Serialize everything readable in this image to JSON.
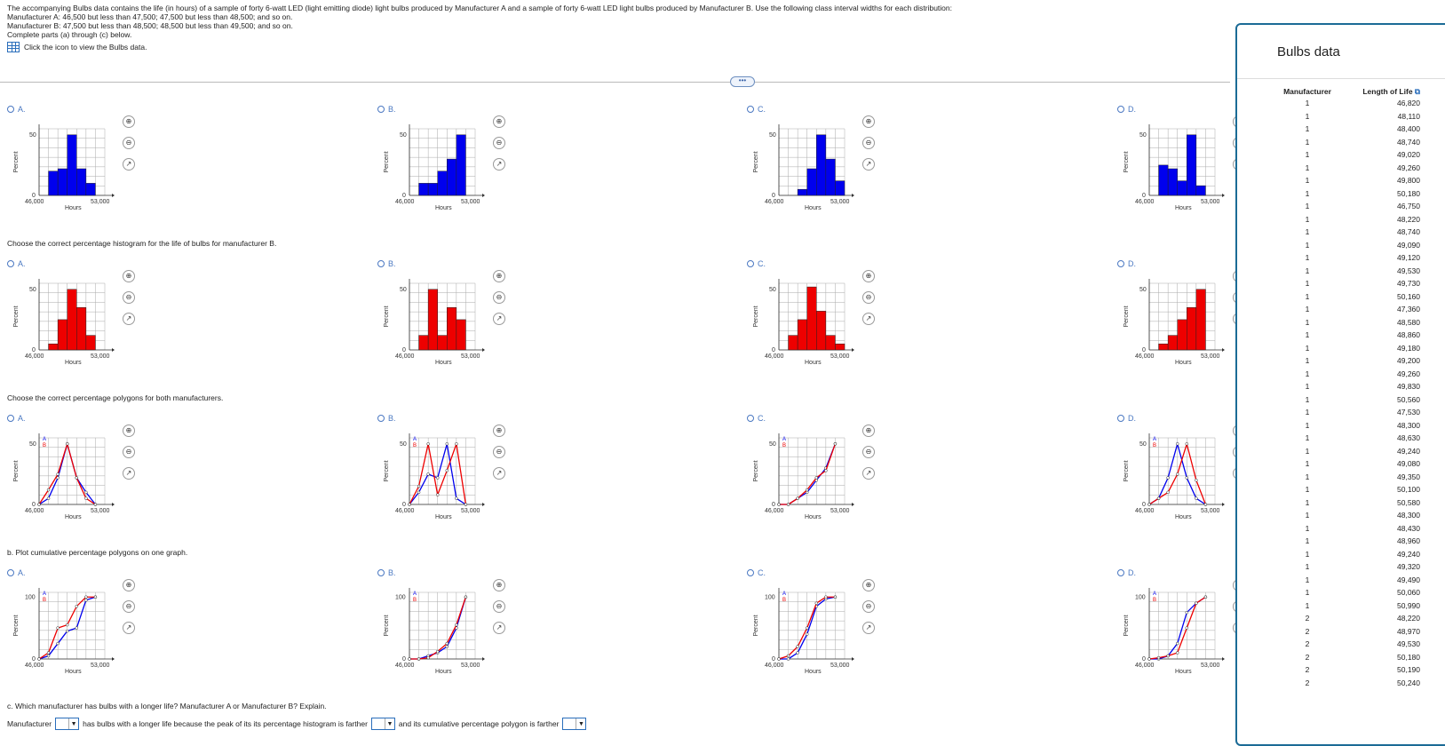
{
  "intro": {
    "line1": "The accompanying Bulbs data contains the life (in hours) of a sample of forty 6-watt LED (light emitting diode) light bulbs produced by Manufacturer A and a sample of forty 6-watt LED light bulbs produced by Manufacturer B. Use the following class interval widths for each distribution:",
    "line2": "Manufacturer A: 46,500 but less than 47,500; 47,500 but less than 48,500; and so on.",
    "line3": "Manufacturer B: 47,500 but less than 48,500; 48,500 but less than 49,500; and so on.",
    "line4": "Complete parts (a) through (c) below.",
    "link": "Click the icon to view the Bulbs data."
  },
  "more_button": "•••",
  "questions": {
    "q2": "Choose the correct percentage histogram for the life of bulbs for manufacturer B.",
    "q3": "Choose the correct percentage polygons for both manufacturers.",
    "q4": "b. Plot cumulative percentage polygons on one graph.",
    "q5": "c. Which manufacturer has bulbs with a longer life? Manufacturer A or Manufacturer B? Explain."
  },
  "option_letters": [
    "A.",
    "B.",
    "C.",
    "D."
  ],
  "axis": {
    "ylabel": "Percent",
    "xlabel": "Hours",
    "xmin_label": "46,000",
    "xmax_label": "53,000",
    "y50": "50",
    "y100": "100",
    "y0": "0",
    "legend_a": "A",
    "legend_b": "B"
  },
  "colors": {
    "a": "#0000ee",
    "b": "#ee0000"
  },
  "chart_data": [
    {
      "type": "bar",
      "row": 1,
      "series": [
        {
          "name": "A",
          "values": [
            0,
            20,
            22,
            50,
            22,
            10,
            0
          ]
        }
      ]
    },
    {
      "type": "bar",
      "row": 1,
      "series": [
        {
          "name": "A",
          "values": [
            0,
            10,
            10,
            20,
            30,
            50,
            0
          ]
        }
      ]
    },
    {
      "type": "bar",
      "row": 1,
      "series": [
        {
          "name": "A",
          "values": [
            0,
            0,
            5,
            22,
            50,
            30,
            12
          ]
        }
      ]
    },
    {
      "type": "bar",
      "row": 1,
      "series": [
        {
          "name": "A",
          "values": [
            0,
            25,
            22,
            12,
            50,
            8,
            0
          ]
        }
      ]
    },
    {
      "type": "bar",
      "row": 2,
      "series": [
        {
          "name": "B",
          "values": [
            0,
            5,
            25,
            50,
            35,
            12,
            0
          ]
        }
      ]
    },
    {
      "type": "bar",
      "row": 2,
      "series": [
        {
          "name": "B",
          "values": [
            0,
            12,
            50,
            12,
            35,
            25,
            0
          ]
        }
      ]
    },
    {
      "type": "bar",
      "row": 2,
      "series": [
        {
          "name": "B",
          "values": [
            0,
            12,
            25,
            52,
            32,
            12,
            5
          ]
        }
      ]
    },
    {
      "type": "bar",
      "row": 2,
      "series": [
        {
          "name": "B",
          "values": [
            0,
            5,
            12,
            25,
            35,
            50,
            0
          ]
        }
      ]
    },
    {
      "type": "line",
      "row": 3,
      "series": [
        {
          "name": "A",
          "values": [
            0,
            5,
            22,
            50,
            22,
            10,
            0
          ]
        },
        {
          "name": "B",
          "values": [
            0,
            12,
            25,
            50,
            22,
            5,
            0
          ]
        }
      ]
    },
    {
      "type": "line",
      "row": 3,
      "series": [
        {
          "name": "A",
          "values": [
            0,
            10,
            25,
            22,
            50,
            5,
            0
          ]
        },
        {
          "name": "B",
          "values": [
            0,
            15,
            50,
            8,
            28,
            50,
            0
          ]
        }
      ]
    },
    {
      "type": "line",
      "row": 3,
      "series": [
        {
          "name": "A",
          "values": [
            0,
            0,
            5,
            10,
            20,
            30,
            50
          ]
        },
        {
          "name": "B",
          "values": [
            0,
            0,
            5,
            12,
            22,
            28,
            50
          ]
        }
      ]
    },
    {
      "type": "line",
      "row": 3,
      "series": [
        {
          "name": "A",
          "values": [
            0,
            5,
            22,
            50,
            22,
            5,
            0
          ]
        },
        {
          "name": "B",
          "values": [
            0,
            5,
            10,
            25,
            50,
            20,
            0
          ]
        }
      ]
    },
    {
      "type": "line",
      "row": 4,
      "series": [
        {
          "name": "A",
          "values": [
            0,
            5,
            25,
            45,
            50,
            95,
            100
          ]
        },
        {
          "name": "B",
          "values": [
            0,
            10,
            50,
            55,
            85,
            100,
            100
          ]
        }
      ]
    },
    {
      "type": "line",
      "row": 4,
      "series": [
        {
          "name": "A",
          "values": [
            0,
            0,
            5,
            10,
            20,
            50,
            100
          ]
        },
        {
          "name": "B",
          "values": [
            0,
            0,
            2,
            12,
            25,
            55,
            100
          ]
        }
      ]
    },
    {
      "type": "line",
      "row": 4,
      "series": [
        {
          "name": "A",
          "values": [
            0,
            0,
            10,
            40,
            85,
            97,
            100
          ]
        },
        {
          "name": "B",
          "values": [
            0,
            5,
            20,
            50,
            90,
            100,
            100
          ]
        }
      ]
    },
    {
      "type": "line",
      "row": 4,
      "series": [
        {
          "name": "A",
          "values": [
            0,
            0,
            5,
            25,
            75,
            90,
            100
          ]
        },
        {
          "name": "B",
          "values": [
            0,
            2,
            5,
            10,
            50,
            90,
            100
          ]
        }
      ]
    }
  ],
  "answer": {
    "part1": "Manufacturer",
    "part2": "has bulbs with a longer life because the peak of its its percentage histogram is farther",
    "part3": "and its cumulative percentage polygon is farther"
  },
  "panel": {
    "title": "Bulbs data",
    "col1": "Manufacturer",
    "col2": "Length of Life",
    "rows": [
      [
        "1",
        "46,820"
      ],
      [
        "1",
        "48,110"
      ],
      [
        "1",
        "48,400"
      ],
      [
        "1",
        "48,740"
      ],
      [
        "1",
        "49,020"
      ],
      [
        "1",
        "49,260"
      ],
      [
        "1",
        "49,800"
      ],
      [
        "1",
        "50,180"
      ],
      [
        "1",
        "46,750"
      ],
      [
        "1",
        "48,220"
      ],
      [
        "1",
        "48,740"
      ],
      [
        "1",
        "49,090"
      ],
      [
        "1",
        "49,120"
      ],
      [
        "1",
        "49,530"
      ],
      [
        "1",
        "49,730"
      ],
      [
        "1",
        "50,160"
      ],
      [
        "1",
        "47,360"
      ],
      [
        "1",
        "48,580"
      ],
      [
        "1",
        "48,860"
      ],
      [
        "1",
        "49,180"
      ],
      [
        "1",
        "49,200"
      ],
      [
        "1",
        "49,260"
      ],
      [
        "1",
        "49,830"
      ],
      [
        "1",
        "50,560"
      ],
      [
        "1",
        "47,530"
      ],
      [
        "1",
        "48,300"
      ],
      [
        "1",
        "48,630"
      ],
      [
        "1",
        "49,240"
      ],
      [
        "1",
        "49,080"
      ],
      [
        "1",
        "49,350"
      ],
      [
        "1",
        "50,100"
      ],
      [
        "1",
        "50,580"
      ],
      [
        "1",
        "48,300"
      ],
      [
        "1",
        "48,430"
      ],
      [
        "1",
        "48,960"
      ],
      [
        "1",
        "49,240"
      ],
      [
        "1",
        "49,320"
      ],
      [
        "1",
        "49,490"
      ],
      [
        "1",
        "50,060"
      ],
      [
        "1",
        "50,990"
      ],
      [
        "2",
        "48,220"
      ],
      [
        "2",
        "48,970"
      ],
      [
        "2",
        "49,530"
      ],
      [
        "2",
        "50,180"
      ],
      [
        "2",
        "50,190"
      ],
      [
        "2",
        "50,240"
      ]
    ]
  }
}
